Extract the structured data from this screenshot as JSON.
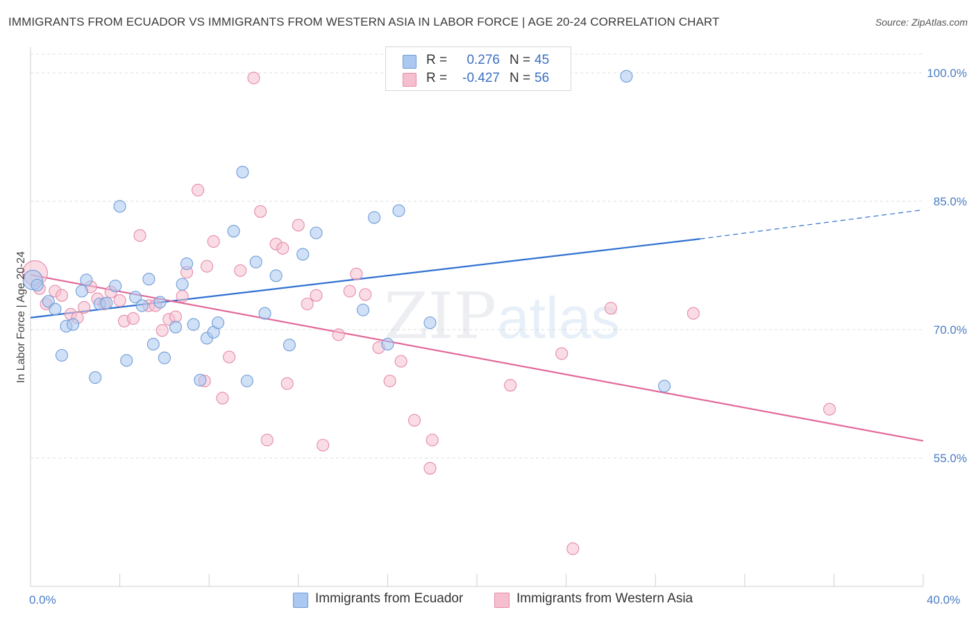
{
  "title": "IMMIGRANTS FROM ECUADOR VS IMMIGRANTS FROM WESTERN ASIA IN LABOR FORCE | AGE 20-24 CORRELATION CHART",
  "source": "Source: ZipAtlas.com",
  "watermark": {
    "zip": "ZIP",
    "atlas": "atlas"
  },
  "legend": {
    "r_label": "R =",
    "n_label": "N =",
    "series": [
      {
        "r": "0.276",
        "n": "45"
      },
      {
        "r": "-0.427",
        "n": "56"
      }
    ]
  },
  "colors": {
    "blue_fill": "#aac8f0",
    "blue_stroke": "#6f9bd8",
    "blue_line": "#2e6fd1",
    "pink_fill": "#f5bfd0",
    "pink_stroke": "#e58aa9",
    "pink_line": "#e2689a",
    "grid": "#dedede",
    "tick_text": "#4a7cc4"
  },
  "chart_data": {
    "type": "scatter",
    "title": "IMMIGRANTS FROM ECUADOR VS IMMIGRANTS FROM WESTERN ASIA IN LABOR FORCE | AGE 20-24 CORRELATION CHART",
    "xlabel": "",
    "ylabel": "In Labor Force | Age 20-24",
    "xlim": [
      0,
      40
    ],
    "ylim": [
      40,
      103
    ],
    "x_tick_labels": [
      "0.0%",
      "40.0%"
    ],
    "y_ticks": [
      55,
      70,
      85,
      100
    ],
    "y_tick_labels": [
      "55.0%",
      "70.0%",
      "85.0%",
      "100.0%"
    ],
    "grid": true,
    "legend_position": "top-center",
    "series": [
      {
        "name": "Immigrants from Ecuador",
        "color": "blue",
        "r": 0.276,
        "n": 45,
        "trend": {
          "x": [
            0,
            30.0
          ],
          "y": [
            71.4,
            80.6
          ],
          "dash_to": [
            40,
            84.0
          ]
        },
        "points": [
          [
            0.1,
            75.8
          ],
          [
            0.3,
            75.2
          ],
          [
            0.8,
            73.3
          ],
          [
            1.1,
            72.4
          ],
          [
            1.4,
            67.0
          ],
          [
            1.6,
            70.4
          ],
          [
            1.9,
            70.6
          ],
          [
            2.3,
            74.5
          ],
          [
            2.5,
            75.8
          ],
          [
            2.9,
            64.4
          ],
          [
            3.1,
            73.0
          ],
          [
            3.4,
            73.1
          ],
          [
            3.8,
            75.1
          ],
          [
            4.0,
            84.4
          ],
          [
            4.3,
            66.4
          ],
          [
            4.7,
            73.8
          ],
          [
            5.0,
            72.8
          ],
          [
            5.3,
            75.9
          ],
          [
            5.5,
            68.3
          ],
          [
            5.8,
            73.2
          ],
          [
            6.0,
            66.7
          ],
          [
            6.5,
            70.3
          ],
          [
            6.8,
            75.3
          ],
          [
            7.0,
            77.7
          ],
          [
            7.3,
            70.6
          ],
          [
            7.6,
            64.1
          ],
          [
            7.9,
            69.0
          ],
          [
            8.2,
            69.7
          ],
          [
            8.4,
            70.8
          ],
          [
            9.1,
            81.5
          ],
          [
            9.5,
            88.4
          ],
          [
            9.7,
            64.0
          ],
          [
            10.1,
            77.9
          ],
          [
            10.5,
            71.9
          ],
          [
            11.0,
            76.3
          ],
          [
            11.6,
            68.2
          ],
          [
            12.2,
            78.8
          ],
          [
            12.8,
            81.3
          ],
          [
            14.9,
            72.3
          ],
          [
            15.4,
            83.1
          ],
          [
            16.0,
            68.3
          ],
          [
            16.5,
            83.9
          ],
          [
            17.9,
            70.8
          ],
          [
            26.7,
            99.6
          ],
          [
            28.4,
            63.4
          ]
        ]
      },
      {
        "name": "Immigrants from Western Asia",
        "color": "pink",
        "r": -0.427,
        "n": 56,
        "trend": {
          "x": [
            0,
            40.0
          ],
          "y": [
            76.4,
            57.0
          ]
        },
        "points": [
          [
            0.2,
            76.6
          ],
          [
            0.4,
            74.8
          ],
          [
            0.7,
            73.0
          ],
          [
            1.1,
            74.5
          ],
          [
            1.4,
            74.0
          ],
          [
            1.8,
            71.8
          ],
          [
            2.1,
            71.4
          ],
          [
            2.4,
            72.6
          ],
          [
            2.7,
            75.0
          ],
          [
            3.0,
            73.6
          ],
          [
            3.3,
            73.0
          ],
          [
            3.6,
            74.4
          ],
          [
            4.0,
            73.4
          ],
          [
            4.2,
            71.0
          ],
          [
            4.6,
            71.3
          ],
          [
            4.9,
            81.0
          ],
          [
            5.3,
            72.8
          ],
          [
            5.6,
            72.8
          ],
          [
            5.9,
            69.9
          ],
          [
            6.2,
            71.2
          ],
          [
            6.5,
            71.5
          ],
          [
            6.8,
            73.9
          ],
          [
            7.0,
            76.7
          ],
          [
            7.5,
            86.3
          ],
          [
            7.8,
            64.0
          ],
          [
            7.9,
            77.4
          ],
          [
            8.2,
            80.3
          ],
          [
            8.6,
            62.0
          ],
          [
            8.9,
            66.8
          ],
          [
            9.4,
            76.9
          ],
          [
            10.0,
            99.4
          ],
          [
            10.3,
            83.8
          ],
          [
            10.6,
            57.1
          ],
          [
            11.0,
            80.0
          ],
          [
            11.3,
            79.5
          ],
          [
            11.5,
            63.7
          ],
          [
            12.0,
            82.2
          ],
          [
            12.4,
            73.0
          ],
          [
            12.8,
            74.0
          ],
          [
            13.1,
            56.5
          ],
          [
            13.8,
            69.4
          ],
          [
            14.3,
            74.5
          ],
          [
            14.6,
            76.5
          ],
          [
            15.0,
            74.1
          ],
          [
            15.6,
            67.9
          ],
          [
            16.1,
            64.0
          ],
          [
            16.6,
            66.3
          ],
          [
            17.2,
            59.4
          ],
          [
            17.9,
            53.8
          ],
          [
            18.0,
            57.1
          ],
          [
            21.5,
            63.5
          ],
          [
            23.8,
            67.2
          ],
          [
            26.0,
            72.5
          ],
          [
            29.7,
            71.9
          ],
          [
            35.8,
            60.7
          ],
          [
            24.3,
            44.4
          ]
        ]
      }
    ]
  },
  "ui": {
    "ylabel": "In Labor Force | Age 20-24",
    "x_left": "0.0%",
    "x_right": "40.0%",
    "legend_bottom": [
      "Immigrants from Ecuador",
      "Immigrants from Western Asia"
    ]
  }
}
